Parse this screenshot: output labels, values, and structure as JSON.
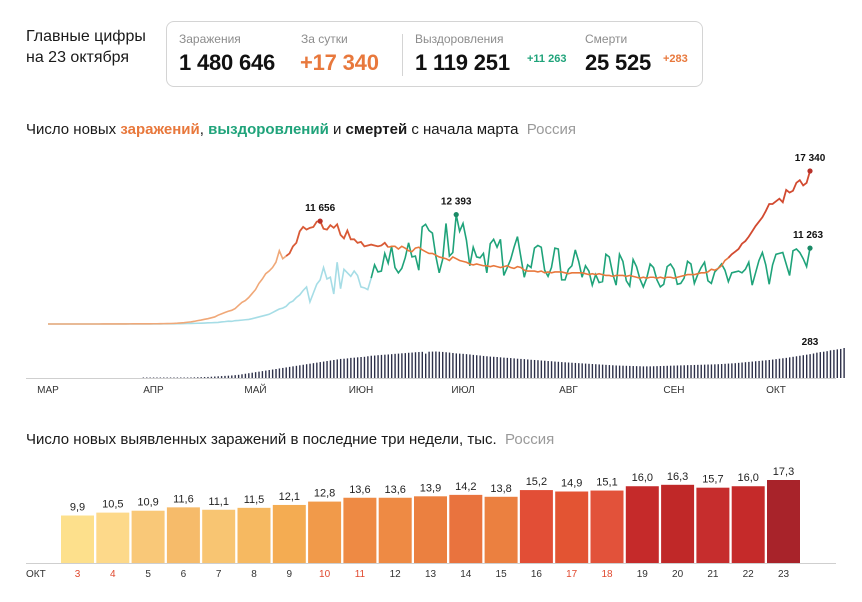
{
  "header": {
    "title_line1": "Главные цифры",
    "title_line2": "на 23 октября"
  },
  "stats": {
    "infections_label": "Заражения",
    "infections_value": "1 480 646",
    "daily_label": "За сутки",
    "daily_value": "+17 340",
    "recoveries_label": "Выздоровления",
    "recoveries_value": "1 119 251",
    "recoveries_delta": "+11 263",
    "deaths_label": "Смерти",
    "deaths_value": "25 525",
    "deaths_delta": "+283"
  },
  "colors": {
    "infections": "#e8783c",
    "infections_peak": "#b8322a",
    "recoveries": "#1fa37a",
    "recoveries_light": "#a6dde6",
    "deaths": "#2c2f48",
    "accent_red": "#e0492f"
  },
  "chart1": {
    "title_pre": "Число новых ",
    "title_w1": "заражений",
    "title_sep1": ", ",
    "title_w2": "выздоровлений",
    "title_sep2": " и ",
    "title_w3": "смертей",
    "title_post": " с начала марта",
    "region": "Россия"
  },
  "chart2": {
    "title": "Число новых выявленных заражений в последние три недели, тыс.",
    "region": "Россия"
  },
  "chart_data": [
    {
      "type": "line",
      "x_labels": [
        "МАР",
        "АПР",
        "МАЙ",
        "ИЮН",
        "ИЮЛ",
        "АВГ",
        "СЕН",
        "ОКТ"
      ],
      "series": [
        {
          "name": "заражений",
          "values": [
            0,
            0,
            0,
            0,
            0,
            0,
            0,
            0,
            0,
            0,
            0,
            0,
            0,
            0,
            1,
            1,
            2,
            2,
            3,
            5,
            6,
            8,
            10,
            12,
            14,
            17,
            18,
            20,
            19,
            21,
            23,
            27,
            30,
            37,
            42,
            50,
            55,
            70,
            90,
            120,
            150,
            200,
            240,
            300,
            380,
            450,
            530,
            600,
            700,
            800,
            1000,
            1150,
            1300,
            1450,
            1550,
            1750,
            2100,
            2450,
            2650,
            3000,
            3450,
            3900,
            4600,
            5100,
            5700,
            6000,
            6400,
            7000,
            8300,
            7400,
            7700,
            8000,
            8800,
            9200,
            10500,
            11000,
            10700,
            10900,
            11000,
            11600,
            11656,
            10800,
            10700,
            11200,
            10900,
            11300,
            10100,
            9700,
            10600,
            9600,
            9600,
            9200,
            9300,
            8800,
            8900,
            9000,
            8900,
            8800,
            8900,
            9200,
            8700,
            8800,
            8800,
            8500,
            8800,
            8600,
            8300,
            8200,
            8600,
            8700,
            8400,
            8200,
            8000,
            8000,
            7800,
            7600,
            7500,
            7400,
            7200,
            7600,
            7400,
            7200,
            7100,
            7000,
            6800,
            6700,
            6800,
            6700,
            6600,
            6600,
            6500,
            6600,
            6500,
            6400,
            6500,
            6600,
            6400,
            6300,
            6500,
            6400,
            6100,
            6000,
            6000,
            6000,
            5900,
            6000,
            5800,
            5900,
            5800,
            5900,
            5900,
            5900,
            5800,
            5700,
            5800,
            5800,
            5800,
            5800,
            5700,
            5600,
            5700,
            5600,
            5700,
            5600,
            5500,
            5500,
            5400,
            5500,
            5500,
            5500,
            5400,
            5500,
            5400,
            5300,
            5200,
            5300,
            5200,
            5300,
            5300,
            5200,
            5300,
            5200,
            5300,
            5300,
            5200,
            5300,
            5400,
            5500,
            5600,
            5600,
            5600,
            5700,
            5800,
            5800,
            5900,
            6200,
            6100,
            6300,
            6600,
            7200,
            7500,
            7900,
            8200,
            8500,
            9100,
            9400,
            9900,
            10500,
            11100,
            11600,
            12100,
            12800,
            13600,
            13600,
            13900,
            14200,
            13800,
            15200,
            14900,
            15100,
            16000,
            16300,
            15700,
            16000,
            17340
          ]
        },
        {
          "name": "выздоровлений",
          "values": [
            0,
            0,
            0,
            0,
            0,
            0,
            0,
            0,
            0,
            0,
            0,
            0,
            0,
            0,
            0,
            0,
            0,
            0,
            1,
            1,
            1,
            2,
            2,
            3,
            3,
            4,
            5,
            5,
            6,
            7,
            8,
            8,
            10,
            12,
            14,
            18,
            20,
            25,
            30,
            38,
            45,
            55,
            60,
            70,
            85,
            95,
            110,
            130,
            140,
            160,
            180,
            230,
            270,
            320,
            300,
            380,
            400,
            440,
            480,
            520,
            600,
            700,
            800,
            900,
            1000,
            1100,
            1300,
            1500,
            1700,
            1800,
            2000,
            2400,
            2600,
            3000,
            3300,
            3800,
            4200,
            2500,
            3500,
            4500,
            5000,
            6400,
            5100,
            5300,
            3400,
            7000,
            4000,
            6200,
            5800,
            5400,
            6000,
            5500,
            4200,
            4100,
            3900,
            5200,
            6700,
            5900,
            6000,
            8000,
            6900,
            8800,
            6400,
            5800,
            6300,
            7500,
            9200,
            7600,
            7700,
            6100,
            11000,
            11300,
            10600,
            10300,
            7700,
            5800,
            7300,
            11400,
            7700,
            8100,
            12393,
            10500,
            11400,
            9500,
            6600,
            8700,
            7600,
            7500,
            8000,
            5800,
            9100,
            9600,
            8700,
            9600,
            5500,
            6400,
            7300,
            8700,
            9900,
            7600,
            5300,
            6700,
            6400,
            8600,
            8900,
            8700,
            6100,
            5400,
            6400,
            8600,
            8500,
            5000,
            5000,
            6200,
            6600,
            8400,
            7100,
            5300,
            6600,
            6000,
            4400,
            5600,
            4700,
            4800,
            7900,
            7600,
            5700,
            4400,
            7900,
            7100,
            4900,
            4300,
            7300,
            6500,
            5100,
            4200,
            5200,
            6800,
            6400,
            5000,
            4200,
            4500,
            6500,
            6800,
            6200,
            4500,
            4600,
            5200,
            7100,
            6800,
            4600,
            5600,
            6400,
            7000,
            4900,
            4600,
            5900,
            6300,
            6800,
            6100,
            4800,
            5800,
            5900,
            6000,
            5800,
            6200,
            7000,
            4400,
            5800,
            7200,
            8100,
            6700,
            4500,
            6700,
            7900,
            8000,
            8100,
            6800,
            5500,
            8300,
            8500,
            8100,
            7400,
            6500,
            8600,
            9700,
            11263
          ]
        },
        {
          "name": "смертей",
          "values": [
            0,
            0,
            0,
            0,
            0,
            0,
            0,
            0,
            0,
            0,
            0,
            0,
            0,
            0,
            0,
            0,
            0,
            0,
            0,
            0,
            0,
            0,
            0,
            0,
            0,
            0,
            0,
            0,
            1,
            1,
            1,
            1,
            1,
            1,
            2,
            2,
            2,
            2,
            3,
            3,
            4,
            4,
            5,
            6,
            7,
            8,
            9,
            10,
            12,
            14,
            16,
            18,
            20,
            22,
            24,
            27,
            30,
            35,
            40,
            45,
            50,
            55,
            60,
            65,
            70,
            75,
            80,
            85,
            90,
            95,
            100,
            105,
            110,
            115,
            120,
            125,
            130,
            135,
            140,
            145,
            150,
            155,
            160,
            165,
            170,
            175,
            180,
            182,
            185,
            190,
            192,
            195,
            198,
            200,
            205,
            210,
            212,
            215,
            218,
            220,
            222,
            225,
            228,
            230,
            233,
            235,
            238,
            240,
            243,
            245,
            247,
            230,
            248,
            249,
            250,
            248,
            246,
            243,
            240,
            236,
            232,
            230,
            228,
            225,
            222,
            218,
            215,
            212,
            208,
            205,
            202,
            200,
            198,
            195,
            192,
            190,
            188,
            185,
            182,
            180,
            178,
            175,
            172,
            170,
            168,
            165,
            163,
            160,
            158,
            155,
            153,
            150,
            148,
            146,
            144,
            142,
            140,
            138,
            136,
            134,
            132,
            130,
            128,
            126,
            124,
            122,
            120,
            118,
            117,
            116,
            115,
            114,
            113,
            112,
            111,
            110,
            110,
            110,
            111,
            112,
            113,
            114,
            115,
            116,
            117,
            118,
            119,
            120,
            121,
            122,
            123,
            124,
            125,
            126,
            127,
            128,
            129,
            130,
            132,
            134,
            136,
            138,
            140,
            143,
            146,
            149,
            152,
            155,
            158,
            161,
            164,
            167,
            170,
            174,
            178,
            182,
            186,
            190,
            195,
            200,
            205,
            210,
            215,
            220,
            225,
            231,
            239,
            244,
            248,
            253,
            261,
            265,
            270,
            274,
            283
          ]
        }
      ],
      "annotations": [
        {
          "label": "11 656",
          "series": "заражений",
          "value": 11656
        },
        {
          "label": "12 393",
          "series": "выздоровлений",
          "value": 12393
        },
        {
          "label": "17 340",
          "series": "заражений",
          "value": 17340
        },
        {
          "label": "11 263",
          "series": "выздоровлений",
          "value": 11263
        },
        {
          "label": "283",
          "series": "смертей",
          "value": 283
        }
      ]
    },
    {
      "type": "bar",
      "axis_label": "ОКТ",
      "categories": [
        "3",
        "4",
        "5",
        "6",
        "7",
        "8",
        "9",
        "10",
        "11",
        "12",
        "13",
        "14",
        "15",
        "16",
        "17",
        "18",
        "19",
        "20",
        "21",
        "22",
        "23"
      ],
      "weekend": [
        true,
        true,
        false,
        false,
        false,
        false,
        false,
        true,
        true,
        false,
        false,
        false,
        false,
        false,
        true,
        true,
        false,
        false,
        false,
        false,
        false
      ],
      "values": [
        9.9,
        10.5,
        10.9,
        11.6,
        11.1,
        11.5,
        12.1,
        12.8,
        13.6,
        13.6,
        13.9,
        14.2,
        13.8,
        15.2,
        14.9,
        15.1,
        16.0,
        16.3,
        15.7,
        16.0,
        17.3
      ],
      "labels": [
        "9,9",
        "10,5",
        "10,9",
        "11,6",
        "11,1",
        "11,5",
        "12,1",
        "12,8",
        "13,6",
        "13,6",
        "13,9",
        "14,2",
        "13,8",
        "15,2",
        "14,9",
        "15,1",
        "16,0",
        "16,3",
        "15,7",
        "16,0",
        "17,3"
      ],
      "colors": [
        "#fde08c",
        "#fdd98a",
        "#f9c878",
        "#f6bb6a",
        "#f8c572",
        "#f6b961",
        "#f4ac52",
        "#f19a4a",
        "#ee8a44",
        "#ee8a44",
        "#eb8040",
        "#e9733e",
        "#eb8040",
        "#e24e36",
        "#e35433",
        "#e2523a",
        "#c52a2a",
        "#c02828",
        "#c62d2d",
        "#c52a2a",
        "#a8232a"
      ]
    }
  ]
}
